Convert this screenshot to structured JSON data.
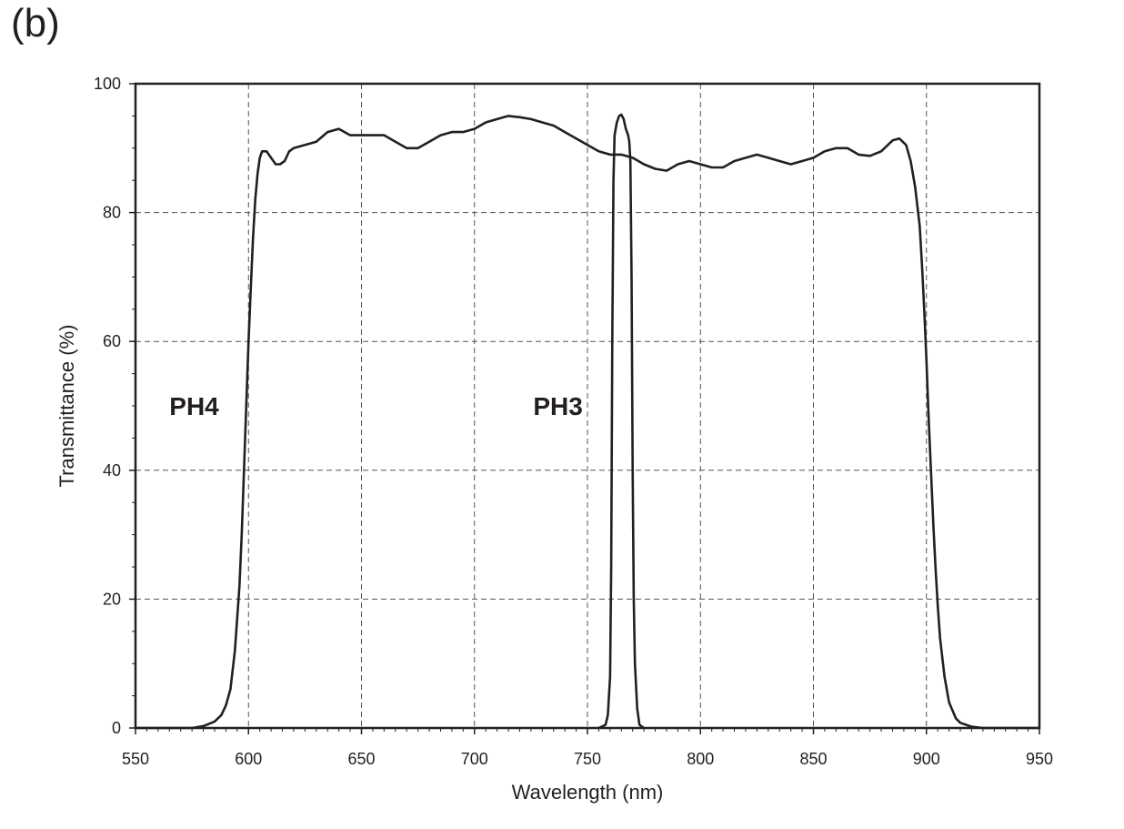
{
  "panel_label": "(b)",
  "chart_data": {
    "type": "line",
    "xlabel": "Wavelength (nm)",
    "ylabel": "Transmittance (%)",
    "xlim": [
      550,
      950
    ],
    "ylim": [
      0,
      100
    ],
    "xticks": [
      550,
      600,
      650,
      700,
      750,
      800,
      850,
      900,
      950
    ],
    "yticks": [
      0,
      20,
      40,
      60,
      80,
      100
    ],
    "grid": true,
    "line_color": "#231f20",
    "series": [
      {
        "label": "PH4",
        "label_pos": [
          565,
          50
        ],
        "x": [
          550,
          575,
          580,
          585,
          588,
          590,
          592,
          594,
          596,
          597,
          598,
          599,
          600,
          601,
          602,
          603,
          604,
          605,
          606,
          608,
          610,
          612,
          614,
          616,
          618,
          620,
          625,
          630,
          635,
          640,
          645,
          650,
          655,
          660,
          665,
          670,
          675,
          680,
          685,
          690,
          695,
          700,
          705,
          710,
          715,
          720,
          725,
          730,
          735,
          740,
          745,
          750,
          755,
          760,
          765,
          770,
          775,
          780,
          785,
          790,
          795,
          800,
          805,
          810,
          815,
          820,
          825,
          830,
          835,
          840,
          845,
          850,
          855,
          860,
          865,
          870,
          875,
          880,
          885,
          888,
          891,
          893,
          895,
          897,
          898,
          899,
          900,
          901,
          902,
          903,
          904,
          905,
          906,
          908,
          910,
          913,
          915,
          920,
          925,
          950
        ],
        "y": [
          0,
          0,
          0.3,
          1,
          2,
          3.5,
          6,
          12,
          22,
          30,
          40,
          50,
          60,
          68,
          76,
          82,
          86,
          88.5,
          89.5,
          89.5,
          88.5,
          87.5,
          87.5,
          88,
          89.5,
          90,
          90.5,
          91,
          92.5,
          93,
          92,
          92,
          92,
          92,
          91,
          90,
          90,
          91,
          92,
          92.5,
          92.5,
          93,
          94,
          94.5,
          95,
          94.8,
          94.5,
          94,
          93.5,
          92.5,
          91.5,
          90.5,
          89.5,
          89,
          89,
          88.5,
          87.5,
          86.8,
          86.5,
          87.5,
          88,
          87.5,
          87,
          87,
          88,
          88.5,
          89,
          88.5,
          88,
          87.5,
          88,
          88.5,
          89.5,
          90,
          90,
          89,
          88.8,
          89.5,
          91.2,
          91.5,
          90.5,
          88,
          84,
          78,
          72,
          65,
          57,
          48,
          40,
          32,
          25,
          19,
          14,
          8,
          4,
          1.5,
          0.8,
          0.2,
          0,
          0
        ]
      },
      {
        "label": "PH3",
        "label_pos": [
          726,
          50
        ],
        "x": [
          755,
          758,
          759,
          760,
          760.5,
          761,
          761.5,
          762,
          763,
          764,
          765,
          766,
          767,
          768,
          768.5,
          769,
          769.5,
          770,
          770.5,
          771,
          772,
          773,
          775
        ],
        "y": [
          0,
          0.5,
          2,
          8,
          25,
          60,
          85,
          92,
          94,
          95,
          95.2,
          94.5,
          93,
          92,
          91,
          88,
          70,
          40,
          20,
          10,
          3,
          0.5,
          0
        ]
      }
    ]
  }
}
